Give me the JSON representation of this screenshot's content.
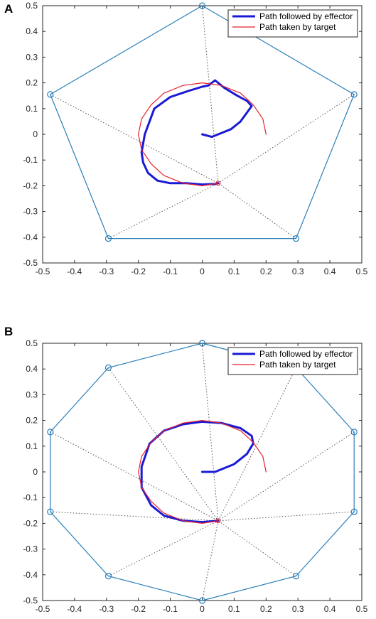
{
  "chart_data": [
    {
      "panel": "A",
      "type": "line",
      "xlim": [
        -0.5,
        0.5
      ],
      "ylim": [
        -0.5,
        0.5
      ],
      "xticks": [
        -0.5,
        -0.4,
        -0.3,
        -0.2,
        -0.1,
        0,
        0.1,
        0.2,
        0.3,
        0.4,
        0.5
      ],
      "yticks": [
        -0.5,
        -0.4,
        -0.3,
        -0.2,
        -0.1,
        0,
        0.1,
        0.2,
        0.3,
        0.4,
        0.5
      ],
      "colors": {
        "polygon": "#2b7fb8",
        "effector": "#1a1ad6",
        "target": "#e8202a",
        "guide": "#555555",
        "axes": "#262626"
      },
      "legend": {
        "position": "top-right",
        "entries": [
          "Path followed by effector",
          "Path taken by target"
        ]
      },
      "anchor": [
        0.05,
        -0.19
      ],
      "polygon": [
        [
          0,
          0.5
        ],
        [
          0.476,
          0.155
        ],
        [
          0.294,
          -0.405
        ],
        [
          -0.294,
          -0.405
        ],
        [
          -0.476,
          0.155
        ]
      ],
      "series": [
        {
          "name": "Path followed by effector",
          "style": "thick",
          "x": [
            0.0,
            0.03,
            0.09,
            0.12,
            0.155,
            0.14,
            0.11,
            0.07,
            0.04,
            0.02,
            0.0,
            -0.04,
            -0.1,
            -0.15,
            -0.18,
            -0.19,
            -0.185,
            -0.17,
            -0.14,
            -0.1,
            -0.05,
            0.0,
            0.04,
            0.05
          ],
          "y": [
            0.0,
            -0.01,
            0.02,
            0.05,
            0.11,
            0.13,
            0.15,
            0.18,
            0.21,
            0.19,
            0.185,
            0.17,
            0.145,
            0.1,
            0.0,
            -0.07,
            -0.11,
            -0.15,
            -0.18,
            -0.19,
            -0.19,
            -0.195,
            -0.193,
            -0.19
          ]
        },
        {
          "name": "Path taken by target",
          "style": "thin",
          "x": [
            0.2,
            0.19,
            0.16,
            0.12,
            0.06,
            0.0,
            -0.06,
            -0.12,
            -0.16,
            -0.19,
            -0.2,
            -0.19,
            -0.16,
            -0.12,
            -0.06,
            0.0,
            0.05
          ],
          "y": [
            0.0,
            0.06,
            0.115,
            0.16,
            0.19,
            0.2,
            0.19,
            0.16,
            0.115,
            0.06,
            0.0,
            -0.06,
            -0.115,
            -0.16,
            -0.19,
            -0.2,
            -0.19
          ]
        }
      ]
    },
    {
      "panel": "B",
      "type": "line",
      "xlim": [
        -0.5,
        0.5
      ],
      "ylim": [
        -0.5,
        0.5
      ],
      "xticks": [
        -0.5,
        -0.4,
        -0.3,
        -0.2,
        -0.1,
        0,
        0.1,
        0.2,
        0.3,
        0.4,
        0.5
      ],
      "yticks": [
        -0.5,
        -0.4,
        -0.3,
        -0.2,
        -0.1,
        0,
        0.1,
        0.2,
        0.3,
        0.4,
        0.5
      ],
      "colors": {
        "polygon": "#2b7fb8",
        "effector": "#1a1ad6",
        "target": "#e8202a",
        "guide": "#555555",
        "axes": "#262626"
      },
      "legend": {
        "position": "top-right",
        "entries": [
          "Path followed by effector",
          "Path taken by target"
        ]
      },
      "anchor": [
        0.05,
        -0.19
      ],
      "polygon": [
        [
          0,
          0.5
        ],
        [
          0.294,
          0.405
        ],
        [
          0.476,
          0.155
        ],
        [
          0.476,
          -0.155
        ],
        [
          0.294,
          -0.405
        ],
        [
          0,
          -0.5
        ],
        [
          -0.294,
          -0.405
        ],
        [
          -0.476,
          -0.155
        ],
        [
          -0.476,
          0.155
        ],
        [
          -0.294,
          0.405
        ]
      ],
      "series": [
        {
          "name": "Path followed by effector",
          "style": "thick",
          "x": [
            0.0,
            0.04,
            0.1,
            0.14,
            0.16,
            0.155,
            0.12,
            0.06,
            0.0,
            -0.06,
            -0.12,
            -0.165,
            -0.19,
            -0.19,
            -0.16,
            -0.12,
            -0.06,
            0.0,
            0.05
          ],
          "y": [
            0.0,
            0.0,
            0.03,
            0.07,
            0.11,
            0.14,
            0.17,
            0.19,
            0.195,
            0.185,
            0.16,
            0.11,
            0.02,
            -0.06,
            -0.13,
            -0.17,
            -0.19,
            -0.195,
            -0.19
          ]
        },
        {
          "name": "Path taken by target",
          "style": "thin",
          "x": [
            0.2,
            0.19,
            0.16,
            0.12,
            0.06,
            0.0,
            -0.06,
            -0.12,
            -0.16,
            -0.19,
            -0.2,
            -0.19,
            -0.16,
            -0.12,
            -0.06,
            0.0,
            0.05
          ],
          "y": [
            0.0,
            0.06,
            0.115,
            0.16,
            0.19,
            0.2,
            0.19,
            0.16,
            0.115,
            0.06,
            0.0,
            -0.06,
            -0.115,
            -0.16,
            -0.19,
            -0.2,
            -0.19
          ]
        }
      ]
    }
  ],
  "labels": {
    "panel_a": "A",
    "panel_b": "B"
  }
}
